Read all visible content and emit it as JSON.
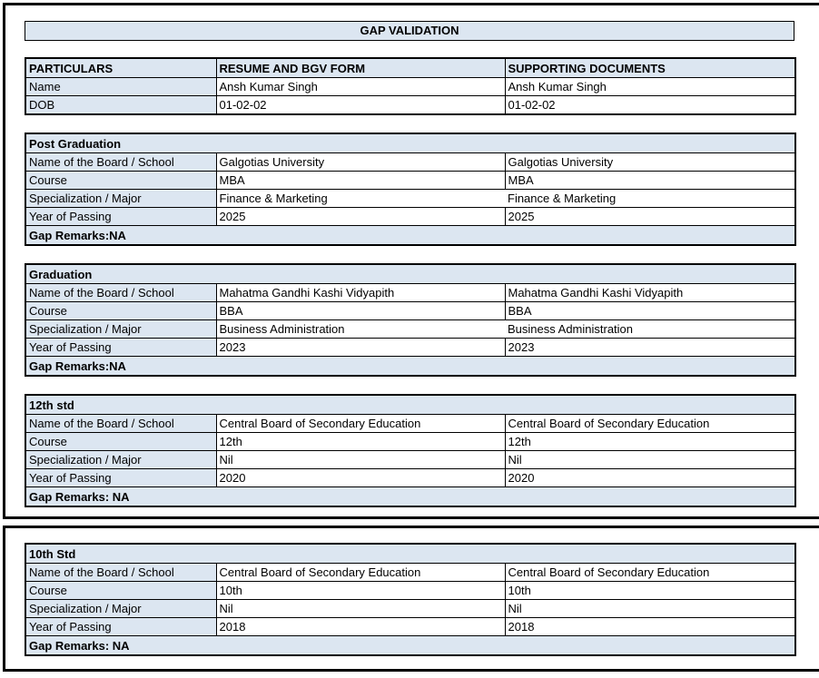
{
  "title_bar": {
    "text": "GAP VALIDATION"
  },
  "colors": {
    "header_bg": "#dce6f1",
    "title_bar_bg": "#dce6f1",
    "table_border": "#000000",
    "outer_border": "#000000"
  },
  "comparison_table": {
    "headers": [
      "PARTICULARS",
      "RESUME AND BGV FORM",
      "SUPPORTING DOCUMENTS"
    ],
    "rows": [
      {
        "label": "Name",
        "resume": "Ansh Kumar Singh",
        "supporting": "Ansh Kumar Singh"
      },
      {
        "label": "DOB",
        "resume": "01-02-02",
        "supporting": "01-02-02"
      }
    ]
  },
  "sections": [
    {
      "title": "Post Graduation",
      "rows": [
        {
          "label": "Name of the Board / School",
          "resume": "Galgotias University",
          "supporting": "Galgotias University"
        },
        {
          "label": "Course",
          "resume": "MBA",
          "supporting": "MBA"
        },
        {
          "label": "Specialization / Major",
          "resume": "Finance & Marketing",
          "supporting": "Finance & Marketing"
        },
        {
          "label": "Year of Passing",
          "resume": "2025",
          "supporting": "2025"
        }
      ],
      "gap_remarks": "Gap Remarks:NA"
    },
    {
      "title": "Graduation",
      "rows": [
        {
          "label": "Name of the Board / School",
          "resume": "Mahatma Gandhi Kashi Vidyapith",
          "supporting": "Mahatma Gandhi Kashi Vidyapith"
        },
        {
          "label": "Course",
          "resume": "BBA",
          "supporting": "BBA"
        },
        {
          "label": "Specialization / Major",
          "resume": "Business Administration",
          "supporting": "Business Administration"
        },
        {
          "label": "Year of Passing",
          "resume": "2023",
          "supporting": "2023"
        }
      ],
      "gap_remarks": "Gap Remarks:NA"
    },
    {
      "title": "12th std",
      "rows": [
        {
          "label": "Name of the Board / School",
          "resume": "Central Board of Secondary Education",
          "supporting": "Central Board of Secondary Education"
        },
        {
          "label": "Course",
          "resume": "12th",
          "supporting": "12th"
        },
        {
          "label": "Specialization / Major",
          "resume": "Nil",
          "supporting": "Nil"
        },
        {
          "label": "Year of Passing",
          "resume": "2020",
          "supporting": "2020"
        }
      ],
      "gap_remarks": "Gap Remarks: NA"
    },
    {
      "title": "10th Std",
      "rows": [
        {
          "label": "Name of the Board / School",
          "resume": "Central Board of Secondary Education",
          "supporting": "Central Board of Secondary Education"
        },
        {
          "label": "Course",
          "resume": "10th",
          "supporting": "10th"
        },
        {
          "label": "Specialization / Major",
          "resume": "Nil",
          "supporting": "Nil"
        },
        {
          "label": "Year of Passing",
          "resume": "2018",
          "supporting": "2018"
        }
      ],
      "gap_remarks": "Gap Remarks: NA"
    }
  ]
}
